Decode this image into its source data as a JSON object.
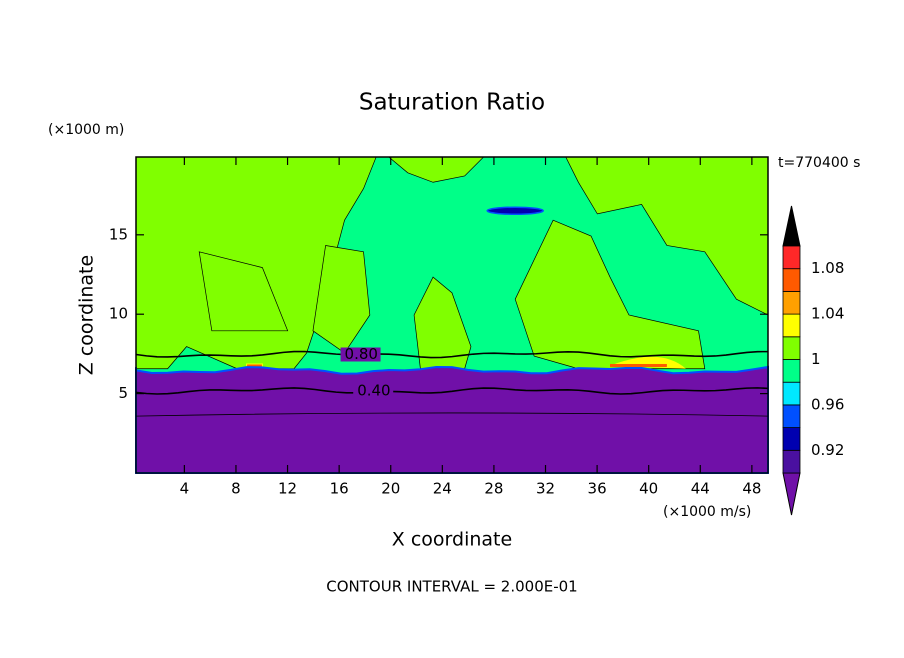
{
  "chart_data": {
    "type": "contour",
    "title": "Saturation Ratio",
    "x_label": "X coordinate",
    "y_label": "Z coordinate",
    "x_unit": "(×1000 m/s)",
    "y_unit": "(×1000 m)",
    "time_label": "t=770400 s",
    "footer": "CONTOUR INTERVAL = 2.000E-01",
    "xlim": [
      0.25,
      49.25
    ],
    "xticks": [
      4,
      8,
      12,
      16,
      20,
      24,
      28,
      32,
      36,
      40,
      44,
      48
    ],
    "ylim": [
      0,
      19.9
    ],
    "yticks": [
      5,
      10,
      15
    ],
    "contour_lines": {
      "values": [
        0.8,
        0.4
      ],
      "value_labels": [
        "0.80",
        "0.40"
      ]
    },
    "colorbar": {
      "levels": [
        0.9,
        0.92,
        0.94,
        0.96,
        0.98,
        1,
        1.02,
        1.04,
        1.06,
        1.08,
        1.1
      ],
      "ticks": [
        0.92,
        0.96,
        1,
        1.04,
        1.08
      ],
      "colors": [
        "#7010a8",
        "#4a10a0",
        "#0000b0",
        "#0050ff",
        "#00e8ff",
        "#00ff88",
        "#80ff00",
        "#ffff00",
        "#ffa000",
        "#ff5a00",
        "#ff2828",
        "#f0a8a8"
      ]
    }
  }
}
